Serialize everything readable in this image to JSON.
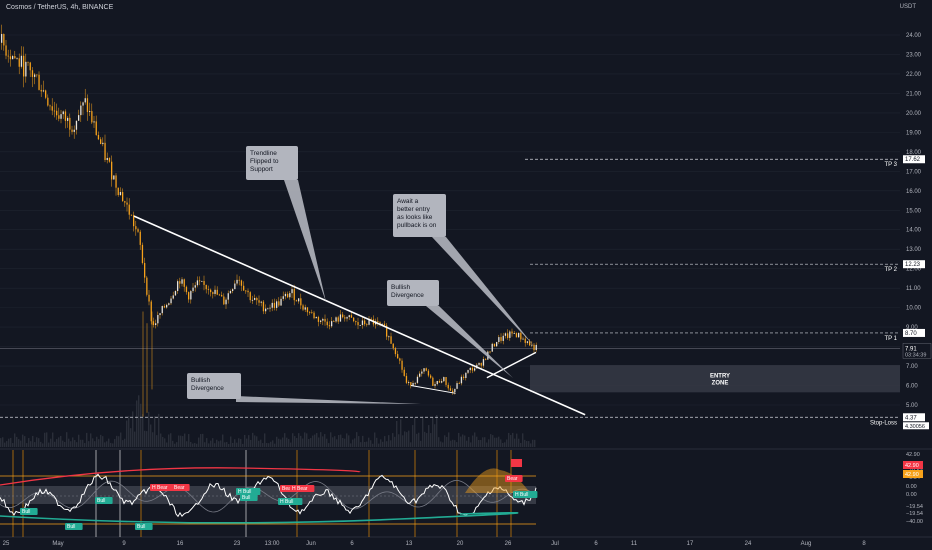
{
  "header": {
    "symbol_title": "Cosmos / TetherUS, 4h, BINANCE",
    "currency": "USDT"
  },
  "annotations": [
    {
      "name": "callout-trendline",
      "lines": [
        "Trendline",
        "Flipped to",
        "Support"
      ]
    },
    {
      "name": "callout-pullback",
      "lines": [
        "Await a",
        "better entry",
        "as looks like",
        "pullback is on"
      ]
    },
    {
      "name": "callout-bullish-divergence-upper",
      "lines": [
        "Bullish",
        "Divergence"
      ]
    },
    {
      "name": "callout-bullish-divergence-lower",
      "lines": [
        "Bullish",
        "Divergence"
      ]
    }
  ],
  "levels": {
    "tp3": {
      "label": "TP 3",
      "price": "17.62",
      "value": 17.62
    },
    "tp2": {
      "label": "TP 2",
      "price": "12.23",
      "value": 12.23
    },
    "tp1": {
      "label": "TP 1",
      "price": "8.70",
      "value": 8.7
    },
    "stop_loss": {
      "label": "Stop-Loss",
      "price": "4.37",
      "value": 4.37
    },
    "entry_zone": {
      "label_lines": [
        "ENTRY",
        "ZONE"
      ],
      "top": 7.05,
      "bottom": 5.65
    }
  },
  "current_price": {
    "price": "7.91",
    "countdown": "03:34:39",
    "value": 7.91
  },
  "price_axis_badge_extra": "4.30056",
  "oscillator": {
    "badges": [
      "42.90",
      "42.90"
    ],
    "tick_labels": [
      "42.90",
      "−19.54",
      "−9.04",
      "0.00",
      "0.00",
      "−19.54",
      "−19.54",
      "−40.00"
    ],
    "signal_labels": [
      "Bull",
      "Bull",
      "Bull",
      "Bull",
      "Bull",
      "H Bull",
      "H Bull",
      "H Bear",
      "Bear",
      "Bear",
      "H Bear",
      "Bear",
      "H Bull"
    ]
  },
  "chart_data": {
    "type": "candlestick",
    "title": "",
    "price_scale": {
      "min": 4.0,
      "max": 25.0,
      "ticks": [
        24.0,
        23.0,
        22.0,
        21.0,
        20.0,
        19.0,
        18.0,
        17.0,
        16.0,
        15.0,
        14.0,
        13.0,
        12.0,
        11.0,
        10.0,
        9.0,
        8.0,
        7.0,
        6.0,
        5.0
      ]
    },
    "x_tick_labels": [
      "25",
      "May",
      "9",
      "16",
      "23",
      "13:00",
      "Jun",
      "6",
      "13",
      "20",
      "26",
      "Jul",
      "6",
      "11",
      "17",
      "24",
      "Aug",
      "8"
    ],
    "price_path": [
      {
        "t": 0,
        "p": 23.6
      },
      {
        "t": 4,
        "p": 22.6
      },
      {
        "t": 8,
        "p": 21.8
      },
      {
        "t": 12,
        "p": 20.1
      },
      {
        "t": 16,
        "p": 19.4
      },
      {
        "t": 19,
        "p": 20.5
      },
      {
        "t": 23,
        "p": 18.0
      },
      {
        "t": 26,
        "p": 16.3
      },
      {
        "t": 29,
        "p": 14.8
      },
      {
        "t": 31,
        "p": 13.5
      },
      {
        "t": 34,
        "p": 9.0
      },
      {
        "t": 36,
        "p": 9.8
      },
      {
        "t": 38,
        "p": 10.5
      },
      {
        "t": 40,
        "p": 11.5
      },
      {
        "t": 42,
        "p": 10.6
      },
      {
        "t": 44,
        "p": 11.2
      },
      {
        "t": 47,
        "p": 11.0
      },
      {
        "t": 50,
        "p": 10.3
      },
      {
        "t": 53,
        "p": 11.6
      },
      {
        "t": 56,
        "p": 10.5
      },
      {
        "t": 59,
        "p": 10.0
      },
      {
        "t": 62,
        "p": 10.2
      },
      {
        "t": 65,
        "p": 10.8
      },
      {
        "t": 68,
        "p": 10.0
      },
      {
        "t": 71,
        "p": 9.4
      },
      {
        "t": 74,
        "p": 9.2
      },
      {
        "t": 77,
        "p": 9.6
      },
      {
        "t": 80,
        "p": 9.1
      },
      {
        "t": 83,
        "p": 9.3
      },
      {
        "t": 86,
        "p": 8.9
      },
      {
        "t": 89,
        "p": 7.5
      },
      {
        "t": 91,
        "p": 6.0
      },
      {
        "t": 93,
        "p": 6.3
      },
      {
        "t": 95,
        "p": 6.8
      },
      {
        "t": 97,
        "p": 6.0
      },
      {
        "t": 99,
        "p": 6.4
      },
      {
        "t": 101,
        "p": 5.6
      },
      {
        "t": 103,
        "p": 6.3
      },
      {
        "t": 105,
        "p": 6.8
      },
      {
        "t": 107,
        "p": 7.0
      },
      {
        "t": 109,
        "p": 7.6
      },
      {
        "t": 111,
        "p": 8.3
      },
      {
        "t": 113,
        "p": 8.5
      },
      {
        "t": 115,
        "p": 8.7
      },
      {
        "t": 117,
        "p": 8.4
      },
      {
        "t": 119,
        "p": 8.0
      },
      {
        "t": 120,
        "p": 7.91
      }
    ],
    "drawings": {
      "descending_trendline": {
        "from": {
          "t": 30,
          "p": 14.7
        },
        "to": {
          "t": 131,
          "p": 4.5
        }
      },
      "support_line": {
        "from": {
          "t": 109,
          "p": 6.4
        },
        "to": {
          "t": 120,
          "p": 7.7
        }
      },
      "divergence_line": {
        "from": {
          "t": 92,
          "p": 6.0
        },
        "to": {
          "t": 102,
          "p": 5.6
        }
      }
    }
  },
  "colors": {
    "background": "#131722",
    "candle": "#e8e3da",
    "candle_wick": "#f7a21b",
    "trendline": "#ffffff",
    "callout_bg": "#b2b5be",
    "entry_zone": "#363a45",
    "vertical_markers": "#ff9800",
    "osc_line": "#ffffff",
    "osc_green": "#22ab94",
    "osc_red": "#f23645",
    "osc_orange": "#f7a21b"
  }
}
